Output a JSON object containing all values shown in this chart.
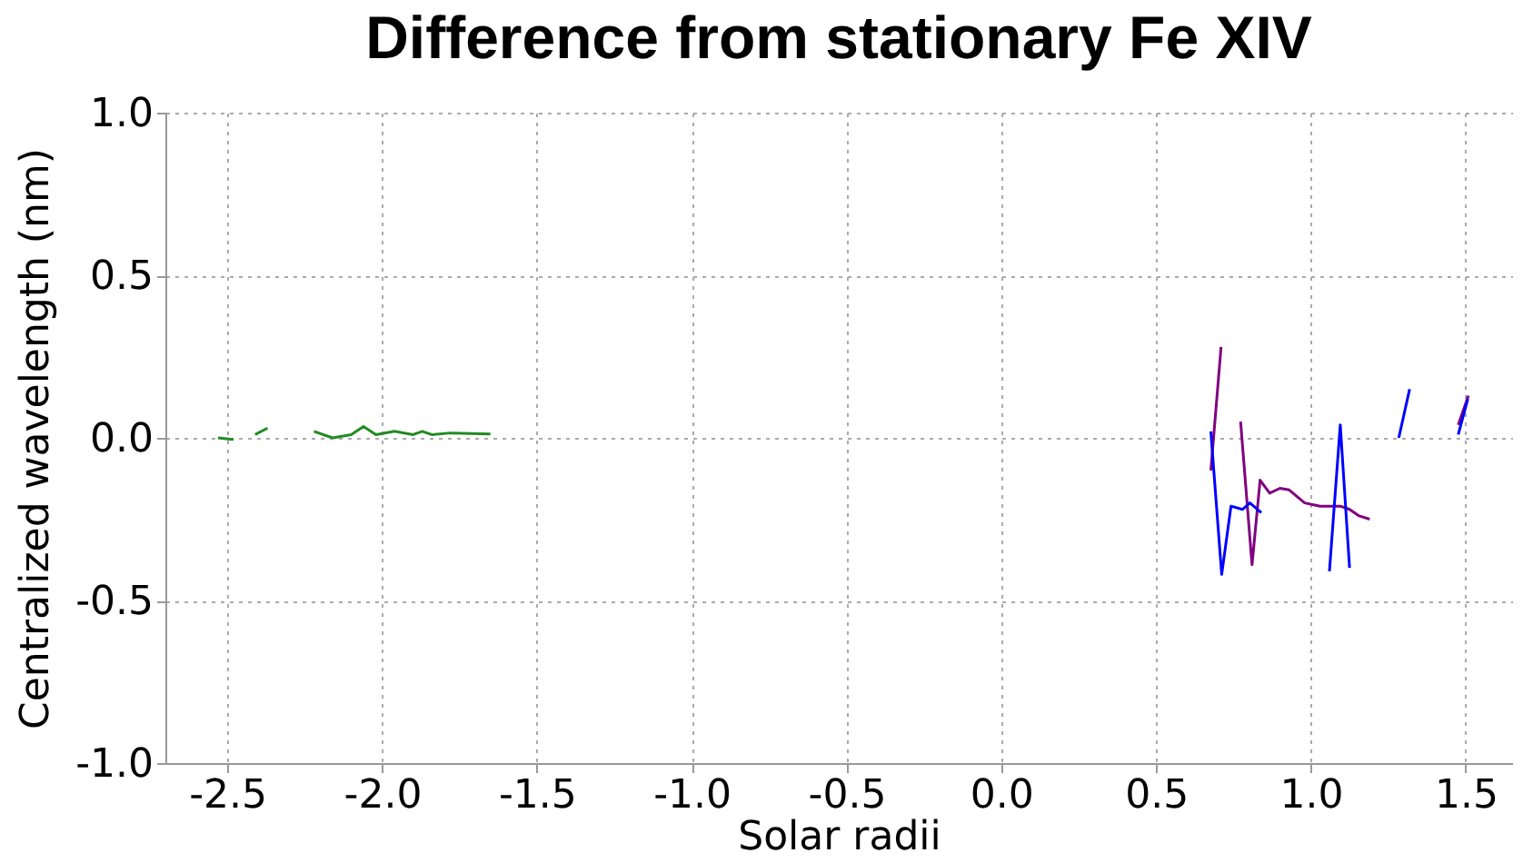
{
  "chart_data": {
    "type": "line",
    "title": "Difference from stationary Fe XIV",
    "xlabel": "Solar radii",
    "ylabel": "Centralized wavelength (nm)",
    "xlim": [
      -2.7,
      1.65
    ],
    "ylim": [
      -1.0,
      1.0
    ],
    "xticks": [
      {
        "value": -2.5,
        "label": "-2.5"
      },
      {
        "value": -2.0,
        "label": "-2.0"
      },
      {
        "value": -1.5,
        "label": "-1.5"
      },
      {
        "value": -1.0,
        "label": "-1.0"
      },
      {
        "value": -0.5,
        "label": "-0.5"
      },
      {
        "value": 0,
        "label": "0.0"
      },
      {
        "value": 0.5,
        "label": "0.5"
      },
      {
        "value": 1.0,
        "label": "1.0"
      },
      {
        "value": 1.5,
        "label": "1.5"
      }
    ],
    "yticks": [
      {
        "value": -1.0,
        "label": "-1.0"
      },
      {
        "value": -0.5,
        "label": "-0.5"
      },
      {
        "value": 0,
        "label": "0.0"
      },
      {
        "value": 0.5,
        "label": "0.5"
      },
      {
        "value": 1.0,
        "label": "1.0"
      }
    ],
    "grid": true,
    "marker": "none",
    "line_style": "solid",
    "series": [
      {
        "color": "#228b22",
        "x": [
          -2.53,
          -2.48,
          -2.44,
          -2.41,
          -2.37,
          -2.3,
          -2.22,
          -2.16,
          -2.1,
          -2.06,
          -2.02,
          -1.96,
          -1.9,
          -1.87,
          -1.84,
          -1.78,
          -1.65
        ],
        "values": [
          0.0,
          -0.005,
          null,
          0.01,
          0.03,
          null,
          0.02,
          0.0,
          0.01,
          0.035,
          0.01,
          0.02,
          0.01,
          0.02,
          0.01,
          0.015,
          0.012
        ]
      },
      {
        "color": "#800080",
        "x": [
          0.677,
          0.71,
          0.74,
          0.773,
          0.81,
          0.836,
          0.867,
          0.9,
          0.93,
          0.98,
          1.03,
          1.095,
          1.125,
          1.156,
          1.19,
          1.3,
          1.476,
          1.509
        ],
        "values": [
          -0.1,
          0.28,
          null,
          0.05,
          -0.39,
          -0.13,
          -0.17,
          -0.155,
          -0.16,
          -0.2,
          -0.21,
          -0.21,
          -0.22,
          -0.24,
          -0.25,
          null,
          0.04,
          0.13
        ]
      },
      {
        "color": "#0000ff",
        "x": [
          0.677,
          0.68,
          0.712,
          0.742,
          0.779,
          0.803,
          0.84,
          0.95,
          1.06,
          1.095,
          1.125,
          1.2,
          1.284,
          1.319,
          1.4,
          1.476,
          1.507
        ],
        "values": [
          0.02,
          -0.02,
          -0.42,
          -0.21,
          -0.22,
          -0.2,
          -0.23,
          null,
          -0.41,
          0.04,
          -0.4,
          null,
          0.0,
          0.15,
          null,
          0.01,
          0.12
        ]
      }
    ]
  }
}
